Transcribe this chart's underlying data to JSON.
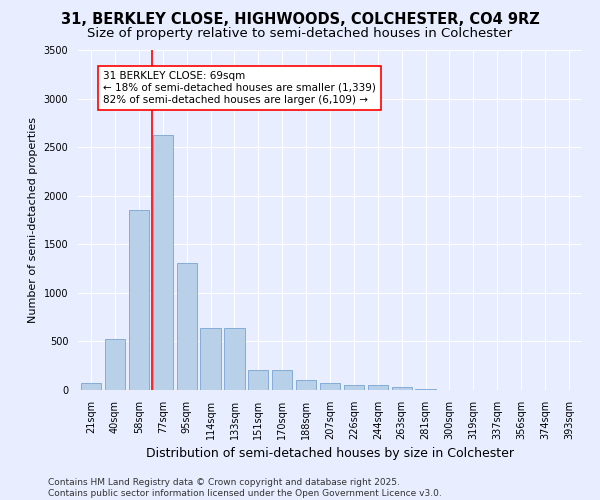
{
  "title": "31, BERKLEY CLOSE, HIGHWOODS, COLCHESTER, CO4 9RZ",
  "subtitle": "Size of property relative to semi-detached houses in Colchester",
  "xlabel": "Distribution of semi-detached houses by size in Colchester",
  "ylabel": "Number of semi-detached properties",
  "categories": [
    "21sqm",
    "40sqm",
    "58sqm",
    "77sqm",
    "95sqm",
    "114sqm",
    "133sqm",
    "151sqm",
    "170sqm",
    "188sqm",
    "207sqm",
    "226sqm",
    "244sqm",
    "263sqm",
    "281sqm",
    "300sqm",
    "319sqm",
    "337sqm",
    "356sqm",
    "374sqm",
    "393sqm"
  ],
  "values": [
    75,
    525,
    1850,
    2625,
    1310,
    640,
    640,
    210,
    210,
    100,
    75,
    50,
    50,
    30,
    10,
    5,
    3,
    2,
    1,
    1,
    1
  ],
  "bar_color": "#b8d0e8",
  "bar_edge_color": "#6699cc",
  "vline_x": 2.53,
  "vline_color": "red",
  "annotation_text": "31 BERKLEY CLOSE: 69sqm\n← 18% of semi-detached houses are smaller (1,339)\n82% of semi-detached houses are larger (6,109) →",
  "annotation_box_color": "white",
  "annotation_box_edge": "red",
  "ylim": [
    0,
    3500
  ],
  "yticks": [
    0,
    500,
    1000,
    1500,
    2000,
    2500,
    3000,
    3500
  ],
  "background_color": "#e8eeff",
  "grid_color": "#ffffff",
  "footer": "Contains HM Land Registry data © Crown copyright and database right 2025.\nContains public sector information licensed under the Open Government Licence v3.0.",
  "title_fontsize": 10.5,
  "subtitle_fontsize": 9.5,
  "xlabel_fontsize": 9,
  "ylabel_fontsize": 8,
  "tick_fontsize": 7,
  "annotation_fontsize": 7.5,
  "footer_fontsize": 6.5
}
